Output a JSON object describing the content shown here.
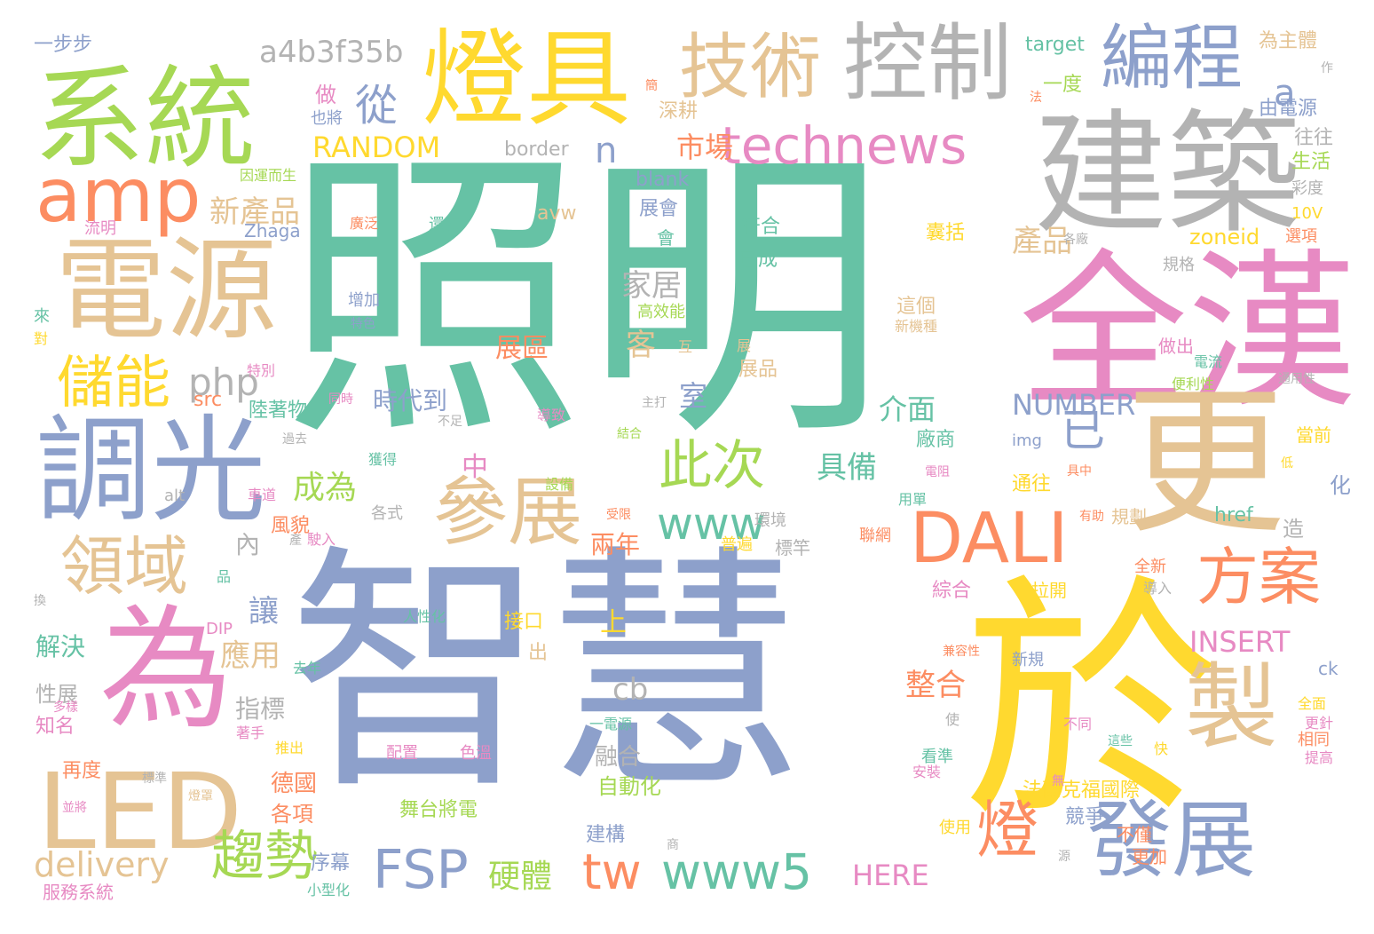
{
  "palette": {
    "teal": "#66c2a5",
    "orange": "#fc8d62",
    "blue": "#8da0cb",
    "pink": "#e78ac3",
    "green": "#a6d854",
    "yellow": "#ffd92f",
    "tan": "#e5c494",
    "gray": "#b3b3b3"
  },
  "words": [
    {
      "text": "照明",
      "color": "teal"
    },
    {
      "text": "智慧",
      "color": "blue"
    },
    {
      "text": "於",
      "color": "yellow"
    },
    {
      "text": "全漢",
      "color": "pink"
    },
    {
      "text": "建築",
      "color": "gray"
    },
    {
      "text": "更",
      "color": "tan"
    },
    {
      "text": "電源",
      "color": "tan"
    },
    {
      "text": "系統",
      "color": "green"
    },
    {
      "text": "燈具",
      "color": "yellow"
    },
    {
      "text": "調光",
      "color": "blue"
    },
    {
      "text": "為",
      "color": "pink"
    },
    {
      "text": "控制",
      "color": "gray"
    },
    {
      "text": "技術",
      "color": "tan"
    },
    {
      "text": "編程",
      "color": "blue"
    },
    {
      "text": "DALI",
      "color": "orange"
    },
    {
      "text": "製",
      "color": "tan"
    },
    {
      "text": "發展",
      "color": "blue"
    },
    {
      "text": "LED",
      "color": "tan"
    },
    {
      "text": "amp",
      "color": "orange"
    },
    {
      "text": "參展",
      "color": "tan"
    },
    {
      "text": "technews",
      "color": "pink"
    },
    {
      "text": "領域",
      "color": "tan"
    },
    {
      "text": "方案",
      "color": "orange"
    },
    {
      "text": "www",
      "color": "teal"
    },
    {
      "text": "www5",
      "color": "teal"
    },
    {
      "text": "此次",
      "color": "green"
    },
    {
      "text": "儲能",
      "color": "yellow"
    },
    {
      "text": "FSP",
      "color": "blue"
    },
    {
      "text": "趨勢",
      "color": "green"
    },
    {
      "text": "燈",
      "color": "orange"
    },
    {
      "text": "tw",
      "color": "orange"
    },
    {
      "text": "a4b3f35b",
      "color": "gray"
    },
    {
      "text": "從",
      "color": "blue"
    },
    {
      "text": "a",
      "color": "blue"
    },
    {
      "text": "已",
      "color": "blue"
    },
    {
      "text": "delivery",
      "color": "tan"
    },
    {
      "text": "RANDOM",
      "color": "yellow"
    },
    {
      "text": "n",
      "color": "blue"
    },
    {
      "text": "市場",
      "color": "orange"
    },
    {
      "text": "新產品",
      "color": "tan"
    },
    {
      "text": "php",
      "color": "gray"
    },
    {
      "text": "家居",
      "color": "gray"
    },
    {
      "text": "產品",
      "color": "tan"
    },
    {
      "text": "zoneid",
      "color": "yellow"
    },
    {
      "text": "客",
      "color": "tan"
    },
    {
      "text": "室",
      "color": "blue"
    },
    {
      "text": "介面",
      "color": "teal"
    },
    {
      "text": "NUMBER",
      "color": "blue"
    },
    {
      "text": "INSERT",
      "color": "pink"
    },
    {
      "text": "cb",
      "color": "gray"
    },
    {
      "text": "整合",
      "color": "orange"
    },
    {
      "text": "具備",
      "color": "teal"
    },
    {
      "text": "成為",
      "color": "green"
    },
    {
      "text": "硬體",
      "color": "green"
    },
    {
      "text": "HERE",
      "color": "pink"
    },
    {
      "text": "border",
      "color": "gray"
    },
    {
      "text": "blank",
      "color": "blue"
    },
    {
      "text": "avw",
      "color": "tan"
    },
    {
      "text": "展區",
      "color": "orange"
    },
    {
      "text": "符合",
      "color": "teal"
    },
    {
      "text": "已成",
      "color": "teal"
    },
    {
      "text": "展品",
      "color": "tan"
    },
    {
      "text": "舞台將電",
      "color": "green"
    },
    {
      "text": "自動化",
      "color": "green"
    },
    {
      "text": "一步步",
      "color": "blue"
    },
    {
      "text": "target",
      "color": "teal"
    },
    {
      "text": "為主體",
      "color": "tan"
    },
    {
      "text": "深耕",
      "color": "tan"
    },
    {
      "text": "一度",
      "color": "green"
    },
    {
      "text": "由電源",
      "color": "blue"
    },
    {
      "text": "往往",
      "color": "gray"
    },
    {
      "text": "生活",
      "color": "green"
    },
    {
      "text": "彩度",
      "color": "gray"
    },
    {
      "text": "10V",
      "color": "yellow"
    },
    {
      "text": "選項",
      "color": "orange"
    },
    {
      "text": "規格",
      "color": "gray"
    },
    {
      "text": "應用",
      "color": "tan"
    },
    {
      "text": "解決",
      "color": "teal"
    },
    {
      "text": "讓",
      "color": "blue"
    },
    {
      "text": "內",
      "color": "gray"
    },
    {
      "text": "性展",
      "color": "gray"
    },
    {
      "text": "知名",
      "color": "pink"
    },
    {
      "text": "多樣",
      "color": "pink"
    },
    {
      "text": "指標",
      "color": "gray"
    },
    {
      "text": "德國",
      "color": "orange"
    },
    {
      "text": "各項",
      "color": "orange"
    },
    {
      "text": "序幕",
      "color": "blue"
    },
    {
      "text": "融合",
      "color": "gray"
    },
    {
      "text": "建構",
      "color": "blue"
    },
    {
      "text": "兩年",
      "color": "orange"
    },
    {
      "text": "上",
      "color": "yellow"
    },
    {
      "text": "中",
      "color": "pink"
    },
    {
      "text": "時代到",
      "color": "blue"
    },
    {
      "text": "做",
      "color": "pink"
    },
    {
      "text": "也將",
      "color": "blue"
    },
    {
      "text": "展會",
      "color": "blue"
    },
    {
      "text": "會",
      "color": "teal"
    },
    {
      "text": "src",
      "color": "orange"
    },
    {
      "text": "alt",
      "color": "gray"
    },
    {
      "text": "Zhaga",
      "color": "blue"
    },
    {
      "text": "DIP",
      "color": "pink"
    },
    {
      "text": "服務系統",
      "color": "pink"
    },
    {
      "text": "再度",
      "color": "orange"
    },
    {
      "text": "標準",
      "color": "gray"
    },
    {
      "text": "並將",
      "color": "pink"
    },
    {
      "text": "推出",
      "color": "yellow"
    },
    {
      "text": "配置",
      "color": "pink"
    },
    {
      "text": "色溫",
      "color": "pink"
    },
    {
      "text": "接口",
      "color": "yellow"
    },
    {
      "text": "出",
      "color": "tan"
    },
    {
      "text": "陸著物",
      "color": "teal"
    },
    {
      "text": "風貌",
      "color": "orange"
    },
    {
      "text": "各式",
      "color": "gray"
    },
    {
      "text": "聯網",
      "color": "orange"
    },
    {
      "text": "標竿",
      "color": "gray"
    },
    {
      "text": "環境",
      "color": "gray"
    },
    {
      "text": "普遍",
      "color": "yellow"
    },
    {
      "text": "綜合",
      "color": "pink"
    },
    {
      "text": "拉開",
      "color": "yellow"
    },
    {
      "text": "規劃",
      "color": "tan"
    },
    {
      "text": "href",
      "color": "teal"
    },
    {
      "text": "img",
      "color": "blue"
    },
    {
      "text": "造",
      "color": "gray"
    },
    {
      "text": "化",
      "color": "blue"
    },
    {
      "text": "當前",
      "color": "yellow"
    },
    {
      "text": "做出",
      "color": "pink"
    },
    {
      "text": "電流",
      "color": "teal"
    },
    {
      "text": "便利性",
      "color": "green"
    },
    {
      "text": "通用性",
      "color": "gray"
    },
    {
      "text": "法蘭克福國際",
      "color": "yellow"
    },
    {
      "text": "競爭",
      "color": "blue"
    },
    {
      "text": "不僅",
      "color": "orange"
    },
    {
      "text": "更加",
      "color": "orange"
    },
    {
      "text": "新規",
      "color": "blue"
    },
    {
      "text": "ck",
      "color": "blue"
    },
    {
      "text": "導入",
      "color": "gray"
    },
    {
      "text": "全新",
      "color": "orange"
    },
    {
      "text": "不同",
      "color": "pink"
    },
    {
      "text": "看準",
      "color": "teal"
    },
    {
      "text": "安裝",
      "color": "pink"
    },
    {
      "text": "使用",
      "color": "yellow"
    },
    {
      "text": "使",
      "color": "gray"
    },
    {
      "text": "無",
      "color": "pink"
    },
    {
      "text": "相同",
      "color": "orange"
    },
    {
      "text": "低",
      "color": "yellow"
    },
    {
      "text": "全面",
      "color": "yellow"
    },
    {
      "text": "更針",
      "color": "pink"
    },
    {
      "text": "提高",
      "color": "pink"
    },
    {
      "text": "快",
      "color": "yellow"
    },
    {
      "text": "這些",
      "color": "teal"
    },
    {
      "text": "通往",
      "color": "yellow"
    },
    {
      "text": "具中",
      "color": "orange"
    },
    {
      "text": "有助",
      "color": "orange"
    },
    {
      "text": "用單",
      "color": "teal"
    },
    {
      "text": "電阻",
      "color": "pink"
    },
    {
      "text": "廠商",
      "color": "teal"
    },
    {
      "text": "這個",
      "color": "tan"
    },
    {
      "text": "新機種",
      "color": "tan"
    },
    {
      "text": "囊括",
      "color": "yellow"
    },
    {
      "text": "高效能",
      "color": "green"
    },
    {
      "text": "特色",
      "color": "blue"
    },
    {
      "text": "增加",
      "color": "blue"
    },
    {
      "text": "還次",
      "color": "teal"
    },
    {
      "text": "廣泛",
      "color": "orange"
    },
    {
      "text": "流明",
      "color": "pink"
    },
    {
      "text": "來",
      "color": "teal"
    },
    {
      "text": "對",
      "color": "yellow"
    },
    {
      "text": "特別",
      "color": "pink"
    },
    {
      "text": "同時",
      "color": "pink"
    },
    {
      "text": "不足",
      "color": "gray"
    },
    {
      "text": "導致",
      "color": "pink"
    },
    {
      "text": "結合",
      "color": "green"
    },
    {
      "text": "過去",
      "color": "gray"
    },
    {
      "text": "獲得",
      "color": "teal"
    },
    {
      "text": "設備",
      "color": "green"
    },
    {
      "text": "車道",
      "color": "pink"
    },
    {
      "text": "受限",
      "color": "orange"
    },
    {
      "text": "駛入",
      "color": "pink"
    },
    {
      "text": "產",
      "color": "gray"
    },
    {
      "text": "品",
      "color": "teal"
    },
    {
      "text": "人性化",
      "color": "teal"
    },
    {
      "text": "換",
      "color": "gray"
    },
    {
      "text": "去年",
      "color": "teal"
    },
    {
      "text": "著手",
      "color": "pink"
    },
    {
      "text": "燈罩",
      "color": "tan"
    },
    {
      "text": "小型化",
      "color": "teal"
    },
    {
      "text": "一電源",
      "color": "teal"
    },
    {
      "text": "商",
      "color": "gray"
    },
    {
      "text": "源",
      "color": "gray"
    },
    {
      "text": "法",
      "color": "orange"
    },
    {
      "text": "作",
      "color": "gray"
    },
    {
      "text": "簡",
      "color": "orange"
    },
    {
      "text": "各廠",
      "color": "gray"
    },
    {
      "text": "因運而生",
      "color": "green"
    },
    {
      "text": "主打",
      "color": "gray"
    },
    {
      "text": "互",
      "color": "tan"
    },
    {
      "text": "展",
      "color": "tan"
    },
    {
      "text": "兼容性",
      "color": "orange"
    }
  ]
}
